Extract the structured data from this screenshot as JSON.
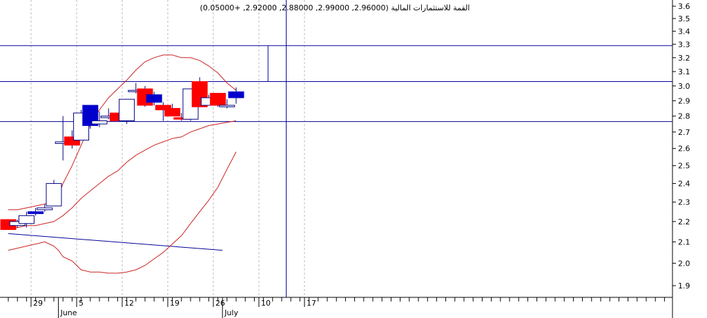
{
  "chart_data": {
    "type": "candlestick",
    "title": "القمة للاستثمارات المالية (2.96000, 2.99000, 2.88000, 2.92000, +0.05000)",
    "y_axis": {
      "ylim": [
        1.85,
        3.65
      ],
      "ticks": [
        "1.9",
        "2.0",
        "2.1",
        "2.2",
        "2.3",
        "2.4",
        "2.5",
        "2.6",
        "2.7",
        "2.8",
        "2.9",
        "3.0",
        "3.1",
        "3.2",
        "3.3",
        "3.4",
        "3.5",
        "3.6"
      ],
      "tick_values": [
        1.9,
        2.0,
        2.1,
        2.2,
        2.3,
        2.4,
        2.5,
        2.6,
        2.7,
        2.8,
        2.9,
        3.0,
        3.1,
        3.2,
        3.3,
        3.4,
        3.5,
        3.6
      ],
      "log_scale": true
    },
    "x_axis": {
      "day_labels": [
        {
          "label": "29",
          "index": 5
        },
        {
          "label": "5",
          "index": 15
        },
        {
          "label": "12",
          "index": 25
        },
        {
          "label": "19",
          "index": 35
        },
        {
          "label": "26",
          "index": 45
        },
        {
          "label": "10",
          "index": 55
        },
        {
          "label": "17",
          "index": 65
        }
      ],
      "month_labels": [
        {
          "label": "June",
          "index": 11
        },
        {
          "label": "July",
          "index": 47
        }
      ]
    },
    "candles": [
      {
        "i": 0,
        "o": 2.21,
        "h": 2.21,
        "l": 2.16,
        "c": 2.16
      },
      {
        "i": 2,
        "o": 2.18,
        "h": 2.21,
        "l": 2.17,
        "c": 2.2
      },
      {
        "i": 4,
        "o": 2.19,
        "h": 2.25,
        "l": 2.17,
        "c": 2.23
      },
      {
        "i": 6,
        "o": 2.24,
        "h": 2.27,
        "l": 2.23,
        "c": 2.25
      },
      {
        "i": 8,
        "o": 2.26,
        "h": 2.29,
        "l": 2.25,
        "c": 2.27
      },
      {
        "i": 10,
        "o": 2.28,
        "h": 2.42,
        "l": 2.28,
        "c": 2.4
      },
      {
        "i": 12,
        "o": 2.63,
        "h": 2.8,
        "l": 2.53,
        "c": 2.64
      },
      {
        "i": 14,
        "o": 2.67,
        "h": 2.71,
        "l": 2.6,
        "c": 2.62
      },
      {
        "i": 16,
        "o": 2.65,
        "h": 2.84,
        "l": 2.65,
        "c": 2.82
      },
      {
        "i": 18,
        "o": 2.87,
        "h": 2.87,
        "l": 2.72,
        "c": 2.74
      },
      {
        "i": 20,
        "o": 2.75,
        "h": 2.83,
        "l": 2.73,
        "c": 2.77
      },
      {
        "i": 22,
        "o": 2.79,
        "h": 2.85,
        "l": 2.78,
        "c": 2.8
      },
      {
        "i": 24,
        "o": 2.82,
        "h": 2.82,
        "l": 2.77,
        "c": 2.77
      },
      {
        "i": 26,
        "o": 2.77,
        "h": 2.91,
        "l": 2.75,
        "c": 2.91
      },
      {
        "i": 28,
        "o": 2.97,
        "h": 3.02,
        "l": 2.95,
        "c": 2.97
      },
      {
        "i": 30,
        "o": 2.98,
        "h": 3.0,
        "l": 2.86,
        "c": 2.87
      },
      {
        "i": 32,
        "o": 2.94,
        "h": 2.96,
        "l": 2.87,
        "c": 2.89
      },
      {
        "i": 34,
        "o": 2.87,
        "h": 2.89,
        "l": 2.77,
        "c": 2.84
      },
      {
        "i": 36,
        "o": 2.85,
        "h": 2.88,
        "l": 2.8,
        "c": 2.8
      },
      {
        "i": 38,
        "o": 2.79,
        "h": 2.82,
        "l": 2.77,
        "c": 2.78
      },
      {
        "i": 40,
        "o": 2.78,
        "h": 2.98,
        "l": 2.77,
        "c": 2.98
      },
      {
        "i": 42,
        "o": 3.03,
        "h": 3.06,
        "l": 2.86,
        "c": 2.86
      },
      {
        "i": 44,
        "o": 2.87,
        "h": 2.94,
        "l": 2.87,
        "c": 2.92
      },
      {
        "i": 46,
        "o": 2.95,
        "h": 2.95,
        "l": 2.86,
        "c": 2.87
      },
      {
        "i": 48,
        "o": 2.86,
        "h": 2.91,
        "l": 2.85,
        "c": 2.87
      },
      {
        "i": 50,
        "o": 2.96,
        "h": 2.99,
        "l": 2.88,
        "c": 2.92
      }
    ],
    "candle_colors": {
      "up": "#ffffff",
      "down": "#ff0000",
      "unchanged": "#0000cc",
      "outline": "#000080"
    },
    "blue_candle_indices": [
      6,
      18,
      32,
      50
    ],
    "bollinger": {
      "color": "#cc2222",
      "upper": [
        [
          0,
          2.26
        ],
        [
          2,
          2.26
        ],
        [
          4,
          2.27
        ],
        [
          6,
          2.28
        ],
        [
          8,
          2.29
        ],
        [
          10,
          2.31
        ],
        [
          11,
          2.33
        ],
        [
          12,
          2.4
        ],
        [
          14,
          2.5
        ],
        [
          16,
          2.62
        ],
        [
          18,
          2.75
        ],
        [
          20,
          2.84
        ],
        [
          22,
          2.92
        ],
        [
          24,
          2.98
        ],
        [
          26,
          3.04
        ],
        [
          28,
          3.11
        ],
        [
          30,
          3.17
        ],
        [
          32,
          3.2
        ],
        [
          34,
          3.22
        ],
        [
          36,
          3.22
        ],
        [
          38,
          3.2
        ],
        [
          40,
          3.2
        ],
        [
          42,
          3.18
        ],
        [
          44,
          3.14
        ],
        [
          46,
          3.09
        ],
        [
          48,
          3.02
        ],
        [
          50,
          2.97
        ]
      ],
      "middle": [
        [
          0,
          2.16
        ],
        [
          2,
          2.17
        ],
        [
          4,
          2.18
        ],
        [
          6,
          2.18
        ],
        [
          8,
          2.19
        ],
        [
          10,
          2.2
        ],
        [
          12,
          2.23
        ],
        [
          14,
          2.27
        ],
        [
          16,
          2.32
        ],
        [
          18,
          2.36
        ],
        [
          20,
          2.4
        ],
        [
          22,
          2.44
        ],
        [
          24,
          2.47
        ],
        [
          26,
          2.52
        ],
        [
          28,
          2.56
        ],
        [
          30,
          2.59
        ],
        [
          32,
          2.62
        ],
        [
          34,
          2.64
        ],
        [
          36,
          2.66
        ],
        [
          38,
          2.67
        ],
        [
          40,
          2.7
        ],
        [
          42,
          2.72
        ],
        [
          44,
          2.74
        ],
        [
          46,
          2.75
        ],
        [
          48,
          2.76
        ],
        [
          50,
          2.77
        ]
      ],
      "lower": [
        [
          0,
          2.06
        ],
        [
          2,
          2.07
        ],
        [
          4,
          2.08
        ],
        [
          6,
          2.09
        ],
        [
          8,
          2.1
        ],
        [
          9,
          2.09
        ],
        [
          10,
          2.08
        ],
        [
          11,
          2.06
        ],
        [
          12,
          2.03
        ],
        [
          14,
          2.01
        ],
        [
          16,
          1.97
        ],
        [
          18,
          1.96
        ],
        [
          20,
          1.96
        ],
        [
          22,
          1.955
        ],
        [
          24,
          1.955
        ],
        [
          26,
          1.96
        ],
        [
          28,
          1.97
        ],
        [
          30,
          1.99
        ],
        [
          32,
          2.02
        ],
        [
          34,
          2.05
        ],
        [
          36,
          2.09
        ],
        [
          38,
          2.13
        ],
        [
          40,
          2.19
        ],
        [
          42,
          2.25
        ],
        [
          44,
          2.31
        ],
        [
          46,
          2.38
        ],
        [
          48,
          2.48
        ],
        [
          50,
          2.58
        ]
      ]
    },
    "trendline": {
      "color": "#000099",
      "from": [
        0,
        2.14
      ],
      "to": [
        47,
        2.06
      ]
    },
    "horizontal_lines": {
      "color": "#000099",
      "values": [
        3.29,
        3.03,
        2.765
      ]
    },
    "vertical_cursor": {
      "index": 61,
      "color": "#000099"
    },
    "extra_vertical": {
      "index": 57,
      "from": 3.03,
      "to": 3.29,
      "color": "#000099"
    },
    "grid": true
  }
}
